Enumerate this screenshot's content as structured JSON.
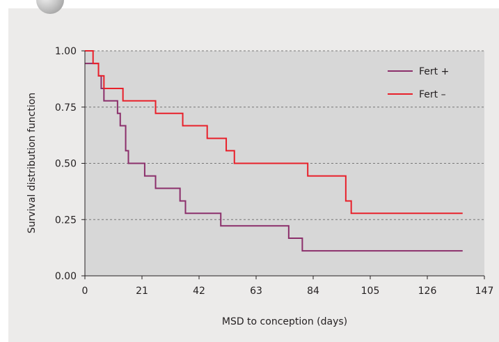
{
  "chart_data": {
    "type": "line",
    "step": true,
    "title": "",
    "xlabel": "MSD to conception (days)",
    "ylabel": "Survival distribution function",
    "xlim": [
      0,
      147
    ],
    "ylim": [
      0,
      1
    ],
    "xticks": [
      0,
      21,
      42,
      63,
      84,
      105,
      126,
      147
    ],
    "yticks": [
      0.0,
      0.25,
      0.5,
      0.75,
      1.0
    ],
    "ytick_labels": [
      "0.00",
      "0.25",
      "0.50",
      "0.75",
      "1.00"
    ],
    "grid": "horizontal-dashed",
    "legend_position": "top-right",
    "series": [
      {
        "name": "Fert +",
        "color": "#8b2f6b",
        "points": [
          [
            0,
            0.944
          ],
          [
            4,
            0.944
          ],
          [
            5,
            0.889
          ],
          [
            6,
            0.833
          ],
          [
            7,
            0.778
          ],
          [
            12,
            0.722
          ],
          [
            13,
            0.667
          ],
          [
            15,
            0.556
          ],
          [
            16,
            0.5
          ],
          [
            22,
            0.444
          ],
          [
            26,
            0.389
          ],
          [
            35,
            0.333
          ],
          [
            37,
            0.278
          ],
          [
            50,
            0.222
          ],
          [
            75,
            0.167
          ],
          [
            80,
            0.111
          ],
          [
            139,
            0.111
          ]
        ]
      },
      {
        "name": "Fert –",
        "color": "#e8202a",
        "points": [
          [
            0,
            1.0
          ],
          [
            2,
            1.0
          ],
          [
            3,
            0.944
          ],
          [
            5,
            0.889
          ],
          [
            7,
            0.833
          ],
          [
            14,
            0.778
          ],
          [
            26,
            0.722
          ],
          [
            36,
            0.667
          ],
          [
            45,
            0.611
          ],
          [
            52,
            0.556
          ],
          [
            55,
            0.5
          ],
          [
            82,
            0.444
          ],
          [
            96,
            0.333
          ],
          [
            98,
            0.278
          ],
          [
            139,
            0.278
          ]
        ]
      }
    ]
  }
}
